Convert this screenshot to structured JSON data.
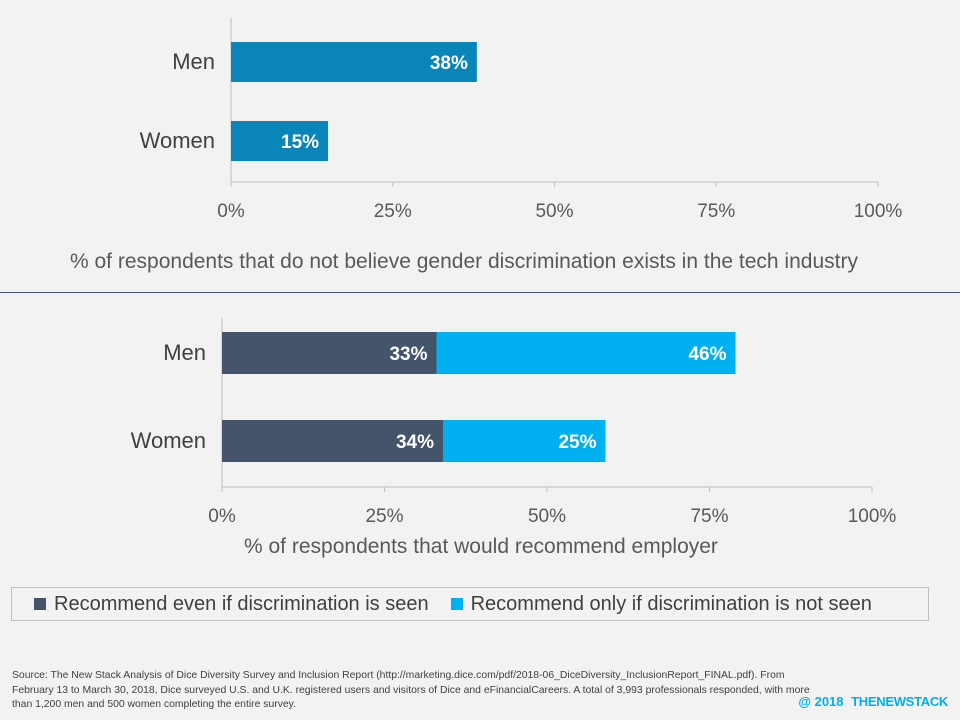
{
  "chart_data": [
    {
      "type": "bar",
      "orientation": "horizontal",
      "categories": [
        "Men",
        "Women"
      ],
      "series": [
        {
          "values": [
            38,
            15
          ],
          "color": "#0a85b9"
        }
      ],
      "data_labels": [
        [
          "38%",
          "15%"
        ]
      ],
      "xticks": [
        "0%",
        "25%",
        "50%",
        "75%",
        "100%"
      ],
      "xlim": [
        0,
        100
      ],
      "xlabel": "%  of respondents that do not believe gender discrimination  exists in the tech industry",
      "grid": false
    },
    {
      "type": "bar",
      "orientation": "horizontal",
      "stacked": true,
      "categories": [
        "Men",
        "Women"
      ],
      "series": [
        {
          "name": "Recommend even if discrimination is seen",
          "values": [
            33,
            34
          ],
          "color": "#44546a"
        },
        {
          "name": "Recommend only if discrimination is not seen",
          "values": [
            46,
            25
          ],
          "color": "#00b0f0"
        }
      ],
      "data_labels": [
        [
          "33%",
          "34%"
        ],
        [
          "46%",
          "25%"
        ]
      ],
      "xticks": [
        "0%",
        "25%",
        "50%",
        "75%",
        "100%"
      ],
      "xlim": [
        0,
        100
      ],
      "xlabel": "%  of respondents that would recommend employer",
      "legend_position": "bottom",
      "grid": false
    }
  ],
  "source": "Source: The New Stack Analysis of Dice Diversity Survey and Inclusion Report (http://marketing.dice.com/pdf/2018-06_DiceDiversity_InclusionReport_FINAL.pdf). From February 13 to March 30, 2018,  Dice surveyed U.S. and U.K. registered  users and visitors of Dice and eFinancialCareers. A total of 3,993  professionals responded, with more than 1,200  men and 500 women completing the entire survey.",
  "copyright": "@ 2018",
  "brand": "THENEWSTACK"
}
